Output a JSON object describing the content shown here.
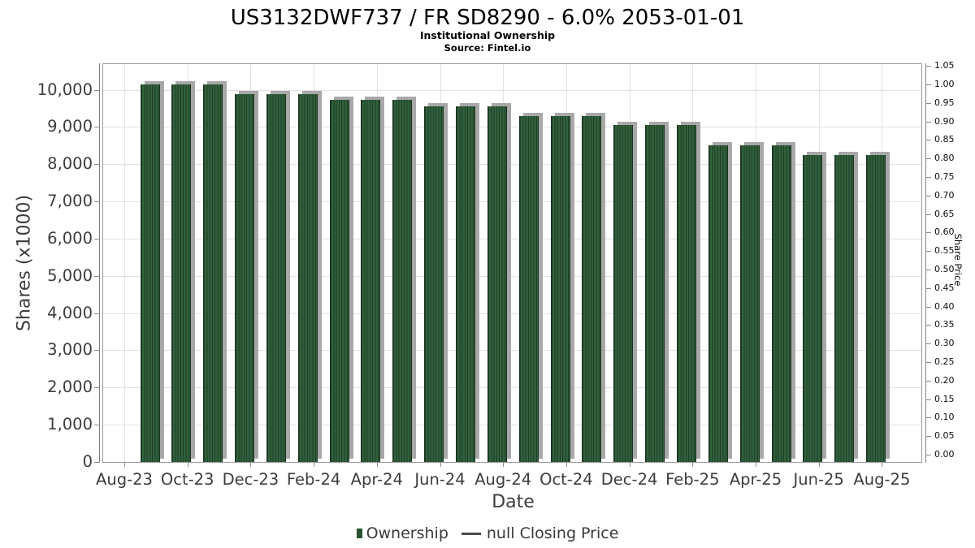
{
  "chart_data": {
    "type": "bar",
    "title": "US3132DWF737 / FR SD8290 - 6.0% 2053-01-01",
    "subtitle": "Institutional Ownership",
    "source": "Source: Fintel.io",
    "xlabel": "Date",
    "ylabel_left": "Shares (x1000)",
    "ylabel_right": "Share Price",
    "categories": [
      "Sep-23",
      "Oct-23",
      "Nov-23",
      "Dec-23",
      "Jan-24",
      "Feb-24",
      "Mar-24",
      "Apr-24",
      "May-24",
      "Jun-24",
      "Jul-24",
      "Aug-24",
      "Sep-24",
      "Oct-24",
      "Nov-24",
      "Dec-24",
      "Jan-25",
      "Feb-25",
      "Mar-25",
      "Apr-25",
      "May-25",
      "Jun-25",
      "Jul-25",
      "Aug-25"
    ],
    "values": [
      10150,
      10150,
      10150,
      9880,
      9880,
      9880,
      9730,
      9730,
      9730,
      9550,
      9550,
      9550,
      9300,
      9300,
      9300,
      9060,
      9060,
      9060,
      8500,
      8500,
      8500,
      8240,
      8240,
      8240
    ],
    "series_name": "Ownership",
    "x_tick_labels": [
      "Aug-23",
      "Oct-23",
      "Dec-23",
      "Feb-24",
      "Apr-24",
      "Jun-24",
      "Aug-24",
      "Oct-24",
      "Dec-24",
      "Feb-25",
      "Apr-25",
      "Jun-25",
      "Aug-25"
    ],
    "y_left_ticks": [
      {
        "value": 0,
        "label": "0"
      },
      {
        "value": 1000,
        "label": "1,000"
      },
      {
        "value": 2000,
        "label": "2,000"
      },
      {
        "value": 3000,
        "label": "3,000"
      },
      {
        "value": 4000,
        "label": "4,000"
      },
      {
        "value": 5000,
        "label": "5,000"
      },
      {
        "value": 6000,
        "label": "6,000"
      },
      {
        "value": 7000,
        "label": "7,000"
      },
      {
        "value": 8000,
        "label": "8,000"
      },
      {
        "value": 9000,
        "label": "9,000"
      },
      {
        "value": 10000,
        "label": "10,000"
      }
    ],
    "y_right_ticks": [
      {
        "value": 0.0,
        "label": "0.00"
      },
      {
        "value": 0.05,
        "label": "0.05"
      },
      {
        "value": 0.1,
        "label": "0.10"
      },
      {
        "value": 0.15,
        "label": "0.15"
      },
      {
        "value": 0.2,
        "label": "0.20"
      },
      {
        "value": 0.25,
        "label": "0.25"
      },
      {
        "value": 0.3,
        "label": "0.30"
      },
      {
        "value": 0.35,
        "label": "0.35"
      },
      {
        "value": 0.4,
        "label": "0.40"
      },
      {
        "value": 0.45,
        "label": "0.45"
      },
      {
        "value": 0.5,
        "label": "0.50"
      },
      {
        "value": 0.55,
        "label": "0.55"
      },
      {
        "value": 0.6,
        "label": "0.60"
      },
      {
        "value": 0.65,
        "label": "0.65"
      },
      {
        "value": 0.7,
        "label": "0.70"
      },
      {
        "value": 0.75,
        "label": "0.75"
      },
      {
        "value": 0.8,
        "label": "0.80"
      },
      {
        "value": 0.85,
        "label": "0.85"
      },
      {
        "value": 0.9,
        "label": "0.90"
      },
      {
        "value": 0.95,
        "label": "0.95"
      },
      {
        "value": 1.0,
        "label": "1.00"
      },
      {
        "value": 1.05,
        "label": "1.05"
      }
    ],
    "ylim_left": [
      0,
      10690
    ],
    "ylim_right": [
      0,
      1.05
    ],
    "grid": true,
    "legend_position": "bottom"
  },
  "legend": {
    "items": [
      {
        "label": "Ownership",
        "marker": "bar-swatch",
        "color": "#28512f"
      },
      {
        "label": "null Closing Price",
        "marker": "line-swatch",
        "color": "#4a4a4a"
      }
    ]
  },
  "colors": {
    "bar_green": "#31603c",
    "bar_stripe_dark": "#1f3e26",
    "bar_shadow": "#a8a8a8",
    "grid": "#e2e2e2",
    "axis_text": "#3d3d3d"
  }
}
